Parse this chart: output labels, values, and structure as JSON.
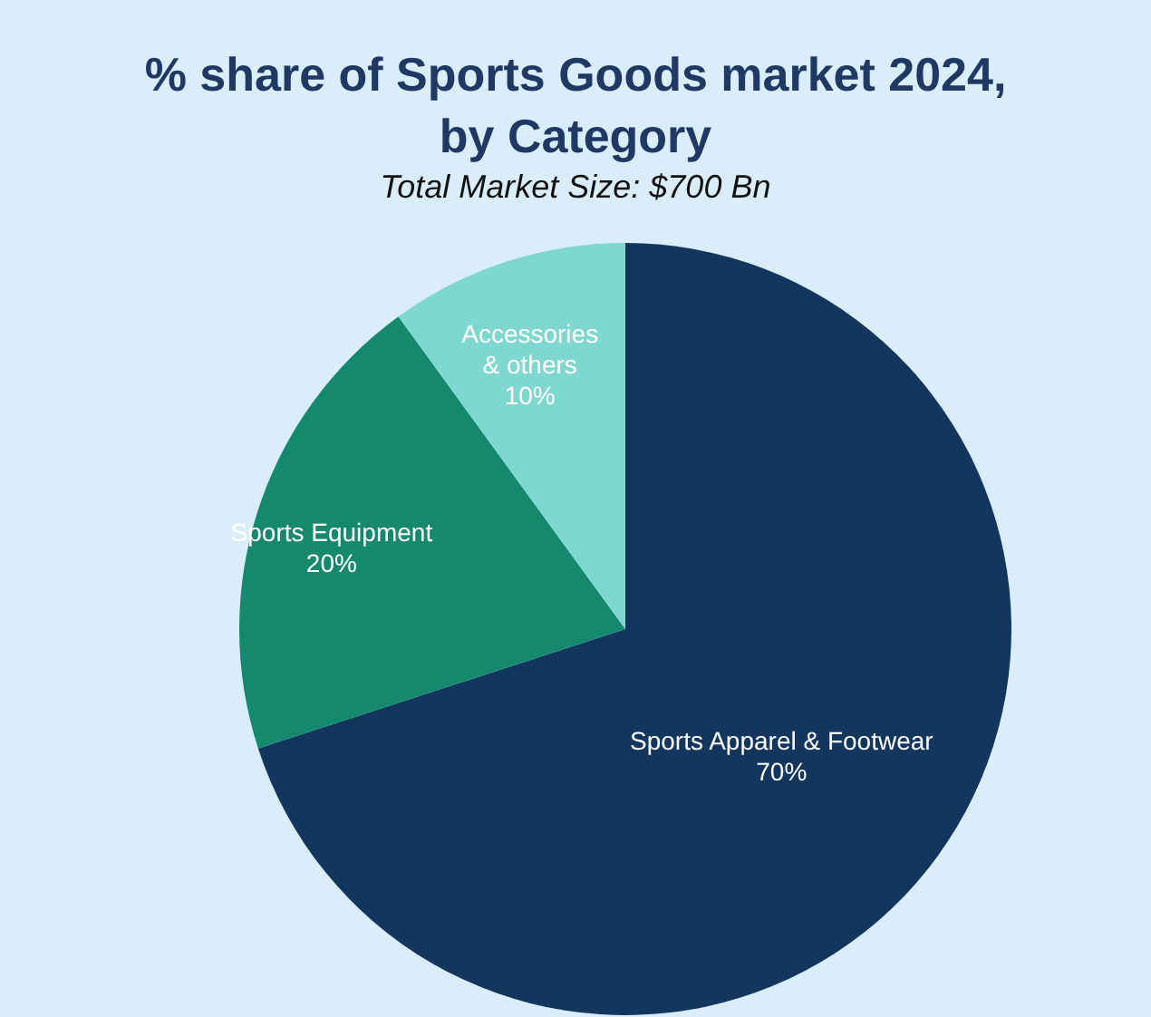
{
  "chart_data": {
    "type": "pie",
    "title": "% share of Sports Goods market 2024, by Category",
    "subtitle": "Total Market Size: $700 Bn",
    "categories": [
      "Sports Apparel & Footwear",
      "Sports Equipment",
      "Accessories & others"
    ],
    "values": [
      70,
      20,
      10
    ],
    "colors": [
      "#13365f",
      "#14896e",
      "#7fd8cf"
    ],
    "value_labels": [
      "70%",
      "20%",
      "10%"
    ]
  }
}
